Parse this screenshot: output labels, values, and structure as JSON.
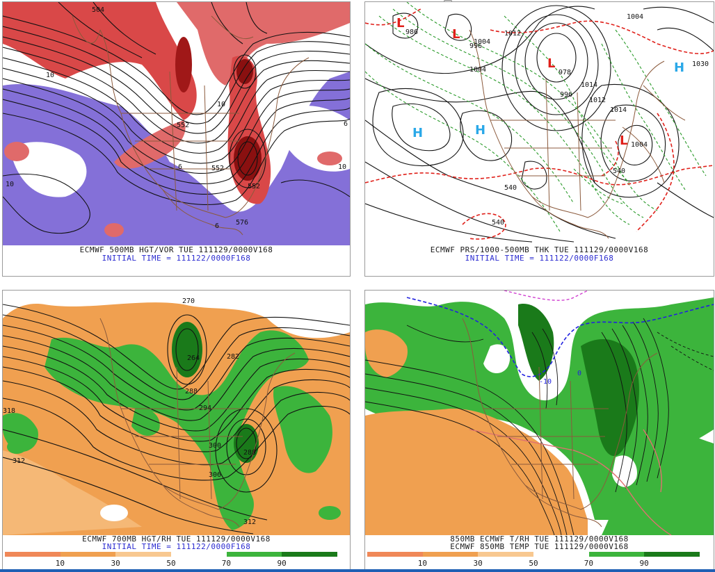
{
  "panels": [
    {
      "id": "p1",
      "caption_line1": "ECMWF 500MB HGT/VOR TUE 111129/0000V168",
      "caption_line2": "INITIAL TIME = 111122/0000F168",
      "contour_labels": [
        "552",
        "552",
        "576",
        "552",
        "10",
        "10",
        "10",
        "10",
        "6",
        "6",
        "6",
        "504"
      ],
      "colors": {
        "vort_pos": "#d94848",
        "vort_pos_dark": "#8a1010",
        "vort_neg": "#8470d8",
        "contour": "#111111",
        "border": "#8b5a3c"
      }
    },
    {
      "id": "p2",
      "caption_line1": "ECMWF PRS/1000-500MB THK TUE 111129/0000V168",
      "caption_line2": "INITIAL TIME = 111122/0000F168",
      "pressure_centers": [
        {
          "symbol": "L",
          "value": "986"
        },
        {
          "symbol": "L",
          "value": "996"
        },
        {
          "symbol": "L",
          "value": "978"
        },
        {
          "symbol": "L",
          "value": "1004"
        },
        {
          "symbol": "H",
          "value": ""
        },
        {
          "symbol": "H",
          "value": ""
        },
        {
          "symbol": "H",
          "value": "1030"
        }
      ],
      "contour_labels": [
        "1004",
        "1012",
        "1004",
        "996",
        "1014",
        "1012",
        "1014",
        "1004",
        "540",
        "540",
        "540"
      ],
      "colors": {
        "low": "#e0201a",
        "high": "#2aa8e8",
        "isobar": "#111111",
        "thk_warm": "#e0201a",
        "thk_cold": "#2a9a2a",
        "border": "#8b5a3c"
      }
    },
    {
      "id": "p3",
      "caption_line1": "ECMWF 700MB HGT/RH TUE 111129/0000V168",
      "caption_line2": "INITIAL TIME = 111122/0000F168",
      "contour_labels": [
        "270",
        "264",
        "282",
        "294",
        "288",
        "300",
        "288",
        "306",
        "312",
        "318",
        "312"
      ],
      "colorbar": {
        "ticks": [
          "10",
          "30",
          "50",
          "70",
          "90"
        ]
      },
      "colors": {
        "dry": "#f0a050",
        "dry_light": "#f8c890",
        "moist": "#3cb43c",
        "moist_dark": "#1a7a1a",
        "contour": "#111111",
        "border": "#8b5a3c"
      }
    },
    {
      "id": "p4",
      "caption_line1": "850MB ECMWF T/RH TUE 111129/0000V168",
      "caption_line2": "ECMWF 850MB TEMP TUE 111129/0000V168",
      "contour_labels": [
        "-10",
        "0"
      ],
      "colorbar": {
        "ticks": [
          "10",
          "30",
          "50",
          "70",
          "90"
        ]
      },
      "colors": {
        "dry": "#f0a050",
        "moist": "#3cb43c",
        "moist_dark": "#1a7a1a",
        "freeze": "#2020e0",
        "warm": "#e07070",
        "cold": "#d040d0",
        "border": "#8b5a3c"
      }
    }
  ]
}
